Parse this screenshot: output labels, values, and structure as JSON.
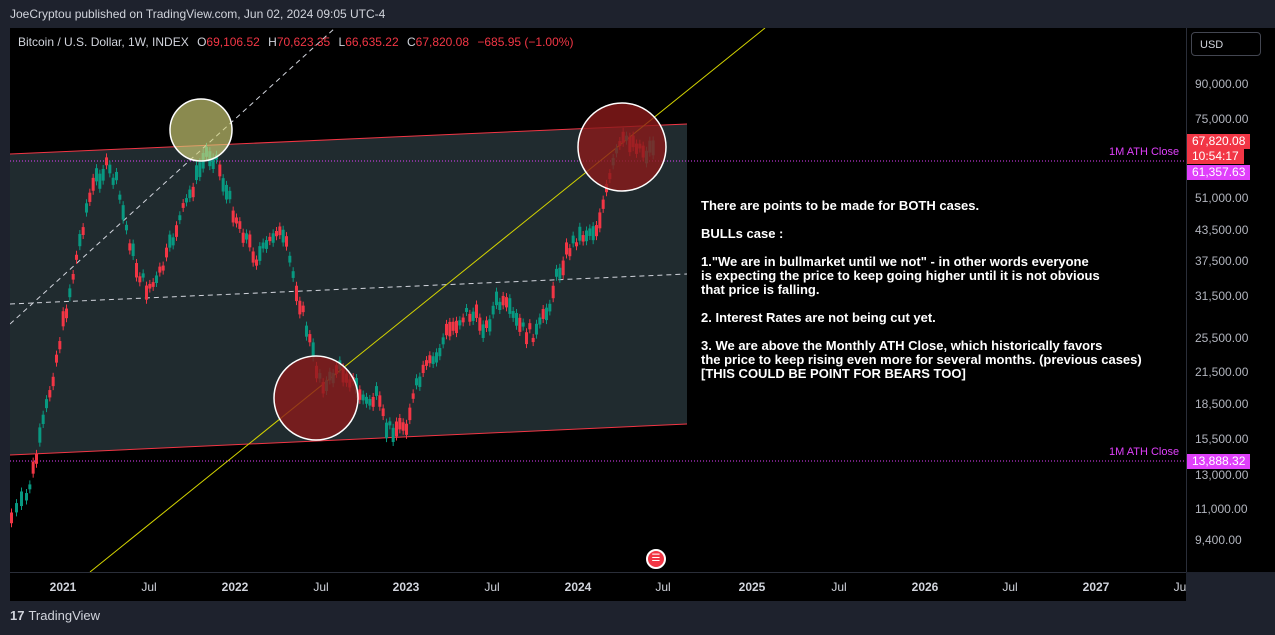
{
  "header": {
    "published": "JoeCryptou published on TradingView.com, Jun 02, 2024 09:05 UTC-4"
  },
  "legend": {
    "symbol": "Bitcoin / U.S. Dollar, 1W, INDEX",
    "o_key": "O",
    "o_val": "69,106.52",
    "h_key": "H",
    "h_val": "70,623.35",
    "l_key": "L",
    "l_val": "66,635.22",
    "c_key": "C",
    "c_val": "67,820.08",
    "change": "−685.95 (−1.00%)"
  },
  "price_axis": {
    "currency": "USD",
    "ticks": [
      "90,000.00",
      "75,000.00",
      "51,000.00",
      "43,500.00",
      "37,500.00",
      "31,500.00",
      "25,500.00",
      "21,500.00",
      "18,500.00",
      "15,500.00",
      "13,000.00",
      "11,000.00",
      "9,400.00"
    ],
    "current_price": "67,820.08",
    "countdown": "10:54:17",
    "ath_price_1": "61,357.63",
    "ath_price_2": "13,888.32"
  },
  "time_axis": {
    "labels": [
      "2021",
      "Jul",
      "2022",
      "Jul",
      "2023",
      "Jul",
      "2024",
      "Jul",
      "2025",
      "Jul",
      "2026",
      "Jul",
      "2027",
      "Ju"
    ]
  },
  "annotations": {
    "ath_label_1": "1M ATH Close",
    "ath_label_2": "1M ATH Close",
    "note_lines": [
      "There are points to be made for BOTH cases.",
      "",
      "BULLs case :",
      "",
      "1.\"We are in bullmarket until we not\" - in other words everyone",
      "is expecting the price to keep going higher until it is not obvious",
      "that price is falling.",
      "",
      "2. Interest Rates are not being cut yet.",
      "",
      "3. We are above the Monthly ATH Close, which historically favors",
      "the price to keep rising even more for several months. (previous cases)",
      "[THIS COULD BE POINT FOR BEARS TOO]"
    ]
  },
  "footer": {
    "brand": "TradingView"
  },
  "colors": {
    "up": "#089981",
    "down": "#f23645",
    "channel": "#f23645",
    "trend": "#d4d400",
    "ath": "#e040fb",
    "bg": "#000000"
  }
}
